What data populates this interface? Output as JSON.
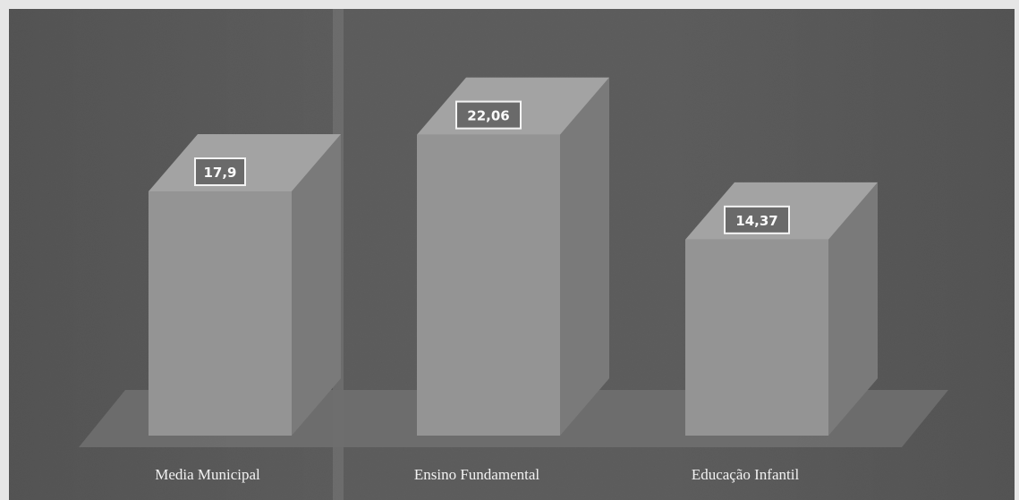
{
  "chart_data": {
    "type": "bar",
    "style": "3d-column",
    "categories": [
      "Media Municipal",
      "Ensino Fundamental",
      "Educação Infantil"
    ],
    "values": [
      17.9,
      22.06,
      14.37
    ],
    "value_labels": [
      "17,9",
      "22,06",
      "14,37"
    ],
    "title": "",
    "xlabel": "",
    "ylabel": "",
    "ylim": [
      0,
      24
    ],
    "grid": false,
    "legend": "none"
  },
  "colors": {
    "background": "#5e5e5e",
    "floor": "#6f6f6f",
    "bar_front": "#949494",
    "bar_side": "#7a7a7a",
    "bar_top": "#a3a3a3",
    "label_text": "#f2f2f2",
    "data_label_border": "#f4f4f4"
  }
}
